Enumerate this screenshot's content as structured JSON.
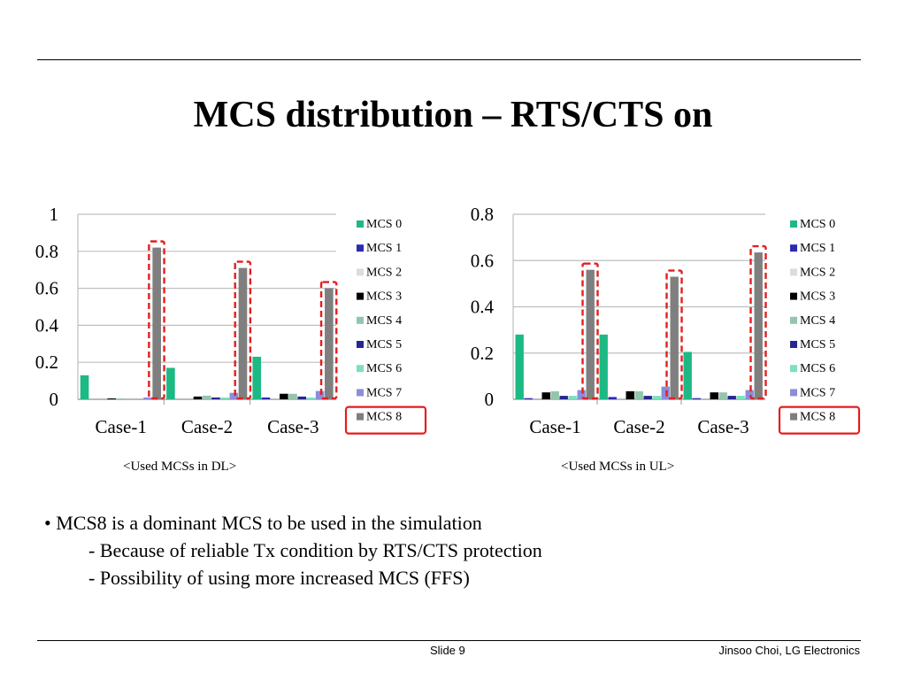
{
  "slide": {
    "title": "MCS distribution – RTS/CTS on",
    "bullet_mark": "•",
    "bullets": [
      "MCS8 is a dominant MCS to be used in the simulation",
      "- Because of reliable Tx condition by RTS/CTS protection",
      "- Possibility of using more increased MCS (FFS)"
    ],
    "footer_slide": "Slide 9",
    "footer_author": "Jinsoo Choi, LG Electronics",
    "captions": [
      "<Used MCSs in DL>",
      "<Used MCSs in UL>"
    ]
  },
  "colors": {
    "MCS 0": "#1db985",
    "MCS 1": "#2b2bb0",
    "MCS 2": "#dcdcdc",
    "MCS 3": "#000000",
    "MCS 4": "#93c5ad",
    "MCS 5": "#262690",
    "MCS 6": "#7ee0bd",
    "MCS 7": "#8c8cdb",
    "MCS 8": "#7f7f7f",
    "highlight": "#e41e1e",
    "grid": "#bfbfbf"
  },
  "chart_data": [
    {
      "type": "bar",
      "title": "",
      "caption": "<Used MCSs in DL>",
      "categories": [
        "Case-1",
        "Case-2",
        "Case-3"
      ],
      "ylim": [
        0,
        1
      ],
      "yticks": [
        0,
        0.2,
        0.4,
        0.6,
        0.8,
        1
      ],
      "ytick_labels": [
        "0",
        "0.2",
        "0.4",
        "0.6",
        "0.8",
        "1"
      ],
      "legend": "right",
      "highlighted_series": "MCS 8",
      "series": [
        {
          "name": "MCS 0",
          "values": [
            0.13,
            0.17,
            0.23
          ]
        },
        {
          "name": "MCS 1",
          "values": [
            0.0,
            0.0,
            0.01
          ]
        },
        {
          "name": "MCS 2",
          "values": [
            0.0,
            0.0,
            0.0
          ]
        },
        {
          "name": "MCS 3",
          "values": [
            0.005,
            0.015,
            0.03
          ]
        },
        {
          "name": "MCS 4",
          "values": [
            0.005,
            0.02,
            0.03
          ]
        },
        {
          "name": "MCS 5",
          "values": [
            0.0,
            0.01,
            0.015
          ]
        },
        {
          "name": "MCS 6",
          "values": [
            0.0,
            0.01,
            0.01
          ]
        },
        {
          "name": "MCS 7",
          "values": [
            0.01,
            0.035,
            0.045
          ]
        },
        {
          "name": "MCS 8",
          "values": [
            0.82,
            0.71,
            0.6
          ]
        }
      ]
    },
    {
      "type": "bar",
      "title": "",
      "caption": "<Used MCSs in UL>",
      "categories": [
        "Case-1",
        "Case-2",
        "Case-3"
      ],
      "ylim": [
        0,
        0.8
      ],
      "yticks": [
        0,
        0.2,
        0.4,
        0.6,
        0.8
      ],
      "ytick_labels": [
        "0",
        "0.2",
        "0.4",
        "0.6",
        "0.8"
      ],
      "legend": "right",
      "highlighted_series": "MCS 8",
      "series": [
        {
          "name": "MCS 0",
          "values": [
            0.28,
            0.28,
            0.205
          ]
        },
        {
          "name": "MCS 1",
          "values": [
            0.005,
            0.01,
            0.005
          ]
        },
        {
          "name": "MCS 2",
          "values": [
            0.0,
            0.0,
            0.0
          ]
        },
        {
          "name": "MCS 3",
          "values": [
            0.03,
            0.035,
            0.03
          ]
        },
        {
          "name": "MCS 4",
          "values": [
            0.035,
            0.035,
            0.03
          ]
        },
        {
          "name": "MCS 5",
          "values": [
            0.015,
            0.015,
            0.015
          ]
        },
        {
          "name": "MCS 6",
          "values": [
            0.015,
            0.015,
            0.015
          ]
        },
        {
          "name": "MCS 7",
          "values": [
            0.04,
            0.055,
            0.04
          ]
        },
        {
          "name": "MCS 8",
          "values": [
            0.56,
            0.53,
            0.635
          ]
        }
      ]
    }
  ]
}
